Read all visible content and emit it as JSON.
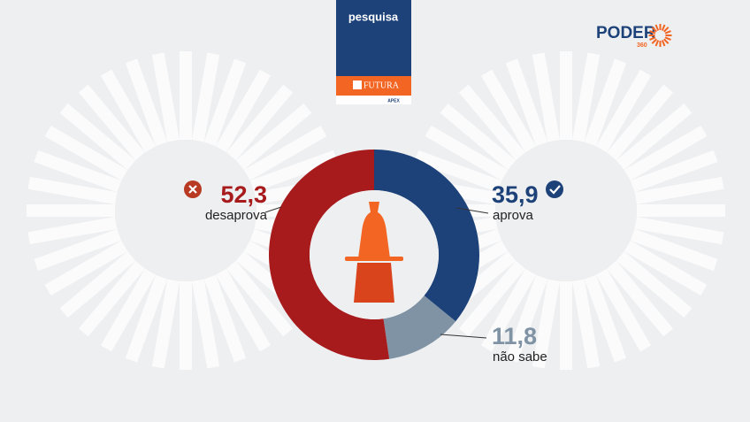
{
  "header": {
    "badge": "pesquisa",
    "sponsor": "FUTURA",
    "partner": "APEX"
  },
  "logo": {
    "name": "PODER",
    "number": "360"
  },
  "chart_data": {
    "type": "donut",
    "categories": [
      "aprova",
      "não sabe",
      "desaprova"
    ],
    "values": [
      35.9,
      11.8,
      52.3
    ],
    "value_labels": [
      "35,9",
      "11,8",
      "52,3"
    ],
    "colors": [
      "#1d4279",
      "#7f93a4",
      "#a81b1d"
    ]
  }
}
